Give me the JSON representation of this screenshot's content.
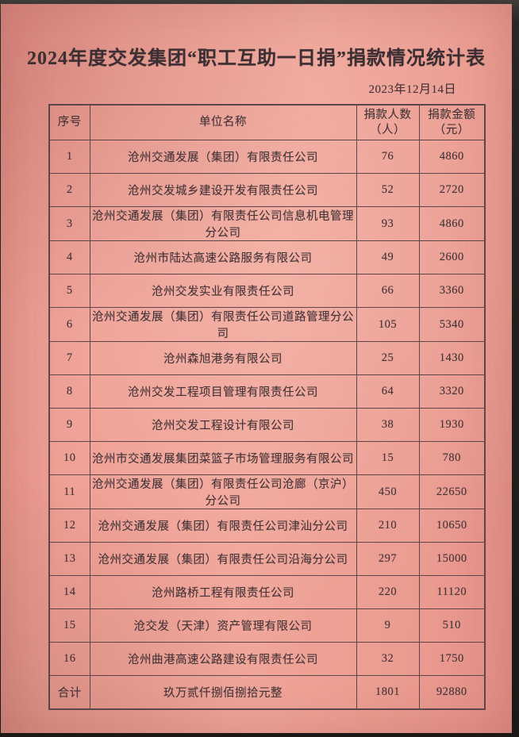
{
  "page": {
    "title": "2024年度交发集团“职工互助一日捐”捐款情况统计表",
    "date": "2023年12月14日"
  },
  "table": {
    "headers": {
      "index": "序号",
      "unit": "单位名称",
      "donors_line1": "捐款人数",
      "donors_line2": "（人）",
      "amount_line1": "捐款金额",
      "amount_line2": "（元）"
    },
    "rows": [
      {
        "index": "1",
        "unit": "沧州交通发展（集团）有限责任公司",
        "donors": "76",
        "amount": "4860"
      },
      {
        "index": "2",
        "unit": "沧州交发城乡建设开发有限责任公司",
        "donors": "52",
        "amount": "2720"
      },
      {
        "index": "3",
        "unit": "沧州交通发展（集团）有限责任公司信息机电管理分公司",
        "donors": "93",
        "amount": "4860"
      },
      {
        "index": "4",
        "unit": "沧州市陆达高速公路服务有限公司",
        "donors": "49",
        "amount": "2600"
      },
      {
        "index": "5",
        "unit": "沧州交发实业有限责任公司",
        "donors": "66",
        "amount": "3360"
      },
      {
        "index": "6",
        "unit": "沧州交通发展（集团）有限责任公司道路管理分公司",
        "donors": "105",
        "amount": "5340"
      },
      {
        "index": "7",
        "unit": "沧州森旭港务有限公司",
        "donors": "25",
        "amount": "1430"
      },
      {
        "index": "8",
        "unit": "沧州交发工程项目管理有限责任公司",
        "donors": "64",
        "amount": "3320"
      },
      {
        "index": "9",
        "unit": "沧州交发工程设计有限公司",
        "donors": "38",
        "amount": "1930"
      },
      {
        "index": "10",
        "unit": "沧州市交通发展集团菜篮子市场管理服务有限公司",
        "donors": "15",
        "amount": "780"
      },
      {
        "index": "11",
        "unit": "沧州交通发展（集团）有限责任公司沧廊（京沪）分公司",
        "donors": "450",
        "amount": "22650"
      },
      {
        "index": "12",
        "unit": "沧州交通发展（集团）有限责任公司津汕分公司",
        "donors": "210",
        "amount": "10650"
      },
      {
        "index": "13",
        "unit": "沧州交通发展（集团）有限责任公司沿海分公司",
        "donors": "297",
        "amount": "15000"
      },
      {
        "index": "14",
        "unit": "沧州路桥工程有限责任公司",
        "donors": "220",
        "amount": "11120"
      },
      {
        "index": "15",
        "unit": "沧交发（天津）资产管理有限公司",
        "donors": "9",
        "amount": "510"
      },
      {
        "index": "16",
        "unit": "沧州曲港高速公路建设有限责任公司",
        "donors": "32",
        "amount": "1750"
      }
    ],
    "total": {
      "label": "合计",
      "amount_in_words": "玖万贰仟捌佰捌拾元整",
      "donors": "1801",
      "amount": "92880"
    }
  },
  "colors": {
    "paper": "#efa095",
    "ink": "#45363a",
    "ink-dark": "#3c2f33",
    "line": "#5e4549",
    "backdrop": "#1b1816"
  }
}
